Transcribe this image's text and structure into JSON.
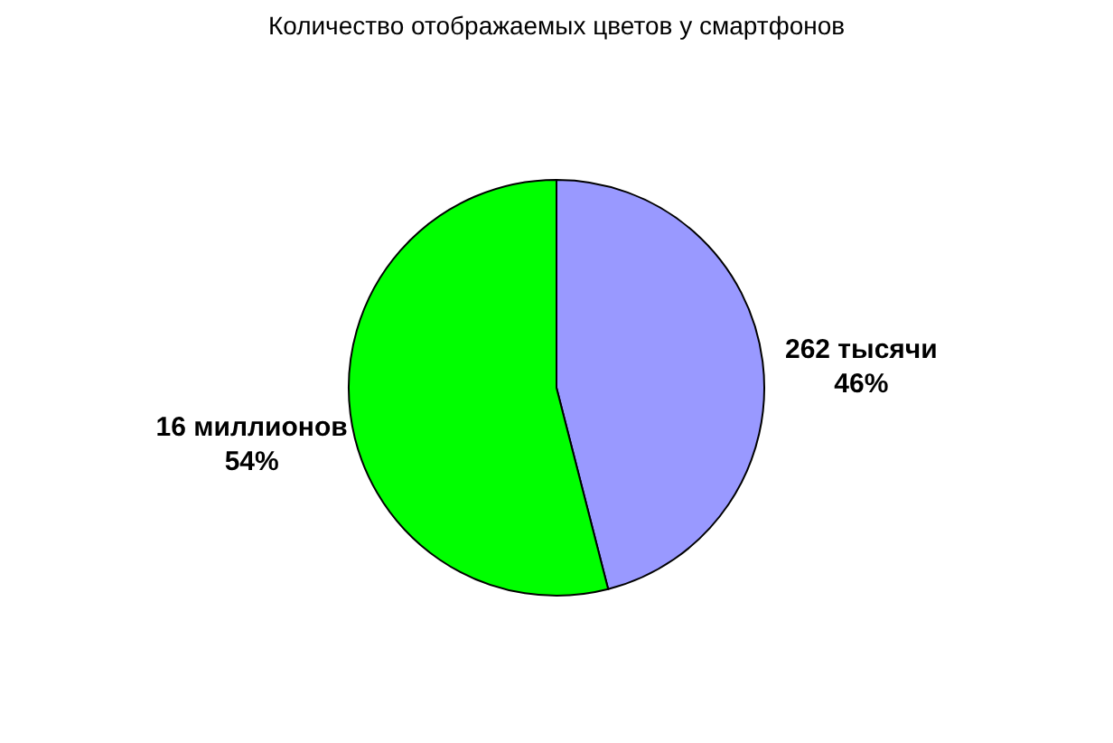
{
  "chart_data": {
    "type": "pie",
    "title": "Количество отображаемых цветов у смартфонов",
    "categories": [
      "262 тысячи",
      "16 миллионов"
    ],
    "values": [
      46,
      54
    ],
    "colors": [
      "#9999ff",
      "#00ff00"
    ],
    "value_labels": [
      "46%",
      "54%"
    ],
    "legend": false
  }
}
